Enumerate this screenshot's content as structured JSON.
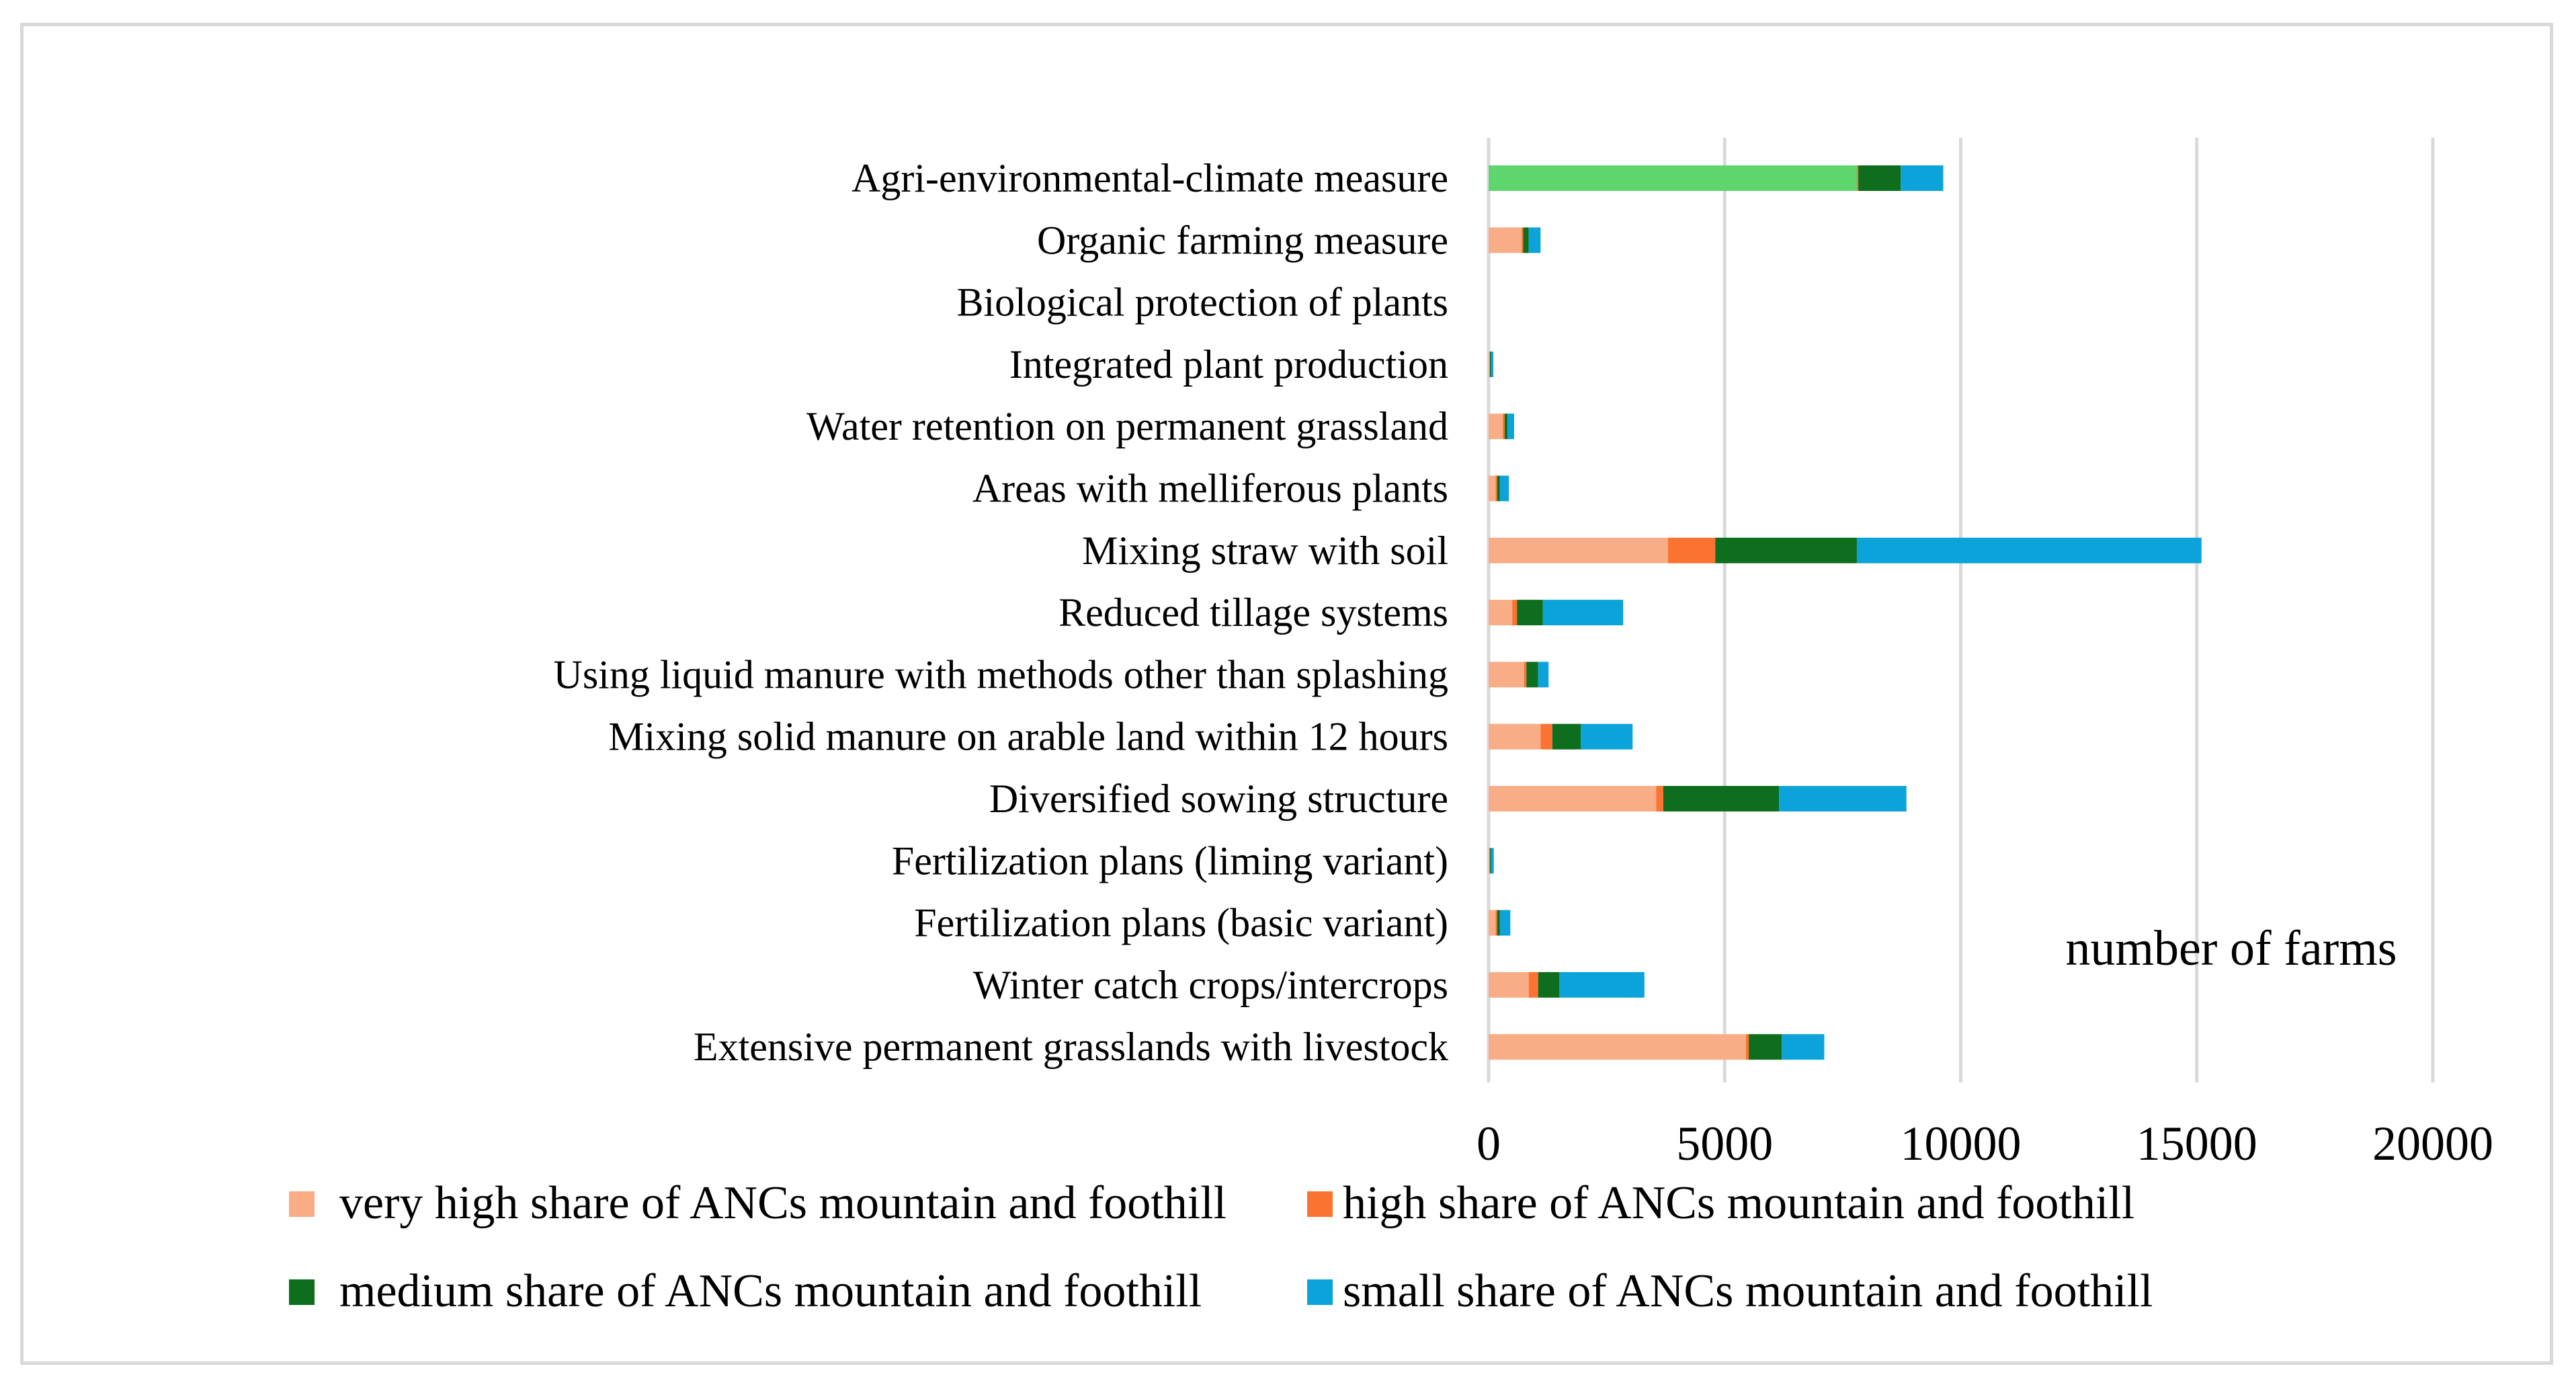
{
  "chart_data": {
    "type": "bar",
    "orientation": "horizontal",
    "stacked": true,
    "title": "",
    "xlabel": "number of farms",
    "ylabel": "",
    "xlim": [
      0,
      20000
    ],
    "xticks": [
      0,
      5000,
      10000,
      15000,
      20000
    ],
    "x_tick_labels": [
      "0",
      "5000",
      "10000",
      "15000",
      "20000"
    ],
    "grid": "vertical",
    "legend_position": "bottom",
    "categories": [
      "Agri-environmental-climate measure",
      "Organic farming measure",
      "Biological protection of plants",
      "Integrated plant production",
      "Water retention on permanent grassland",
      "Areas with melliferous plants",
      "Mixing straw with soil",
      "Reduced tillage systems",
      "Using liquid manure with methods other than splashing",
      "Mixing solid manure on arable land within 12 hours",
      "Diversified sowing structure",
      "Fertilization plans (liming variant)",
      "Fertilization plans (basic variant)",
      "Winter catch crops/intercrops",
      "Extensive permanent grasslands with livestock"
    ],
    "series": [
      {
        "name": "very high share of ANCs mountain and foothill",
        "color": "#f8ad86",
        "values": [
          7800,
          700,
          0,
          20,
          300,
          150,
          3800,
          500,
          750,
          1100,
          3550,
          20,
          150,
          850,
          5450
        ]
      },
      {
        "name": "high share of ANCs mountain and foothill",
        "color": "#fb7330",
        "values": [
          30,
          30,
          0,
          10,
          40,
          30,
          1000,
          100,
          50,
          250,
          150,
          10,
          30,
          200,
          60
        ]
      },
      {
        "name": "medium share of ANCs mountain and foothill",
        "color": "#0e6e1e",
        "values": [
          900,
          120,
          0,
          20,
          60,
          60,
          3000,
          550,
          250,
          600,
          2450,
          20,
          60,
          450,
          700
        ]
      },
      {
        "name": "small share of ANCs mountain and foothill",
        "color": "#0ba3da",
        "values": [
          900,
          250,
          0,
          50,
          140,
          190,
          7300,
          1700,
          220,
          1100,
          2700,
          60,
          220,
          1800,
          900
        ]
      }
    ],
    "highlight": {
      "category": "Agri-environmental-climate measure",
      "series": "very high share of ANCs mountain and foothill",
      "color": "#5ed56d"
    }
  }
}
